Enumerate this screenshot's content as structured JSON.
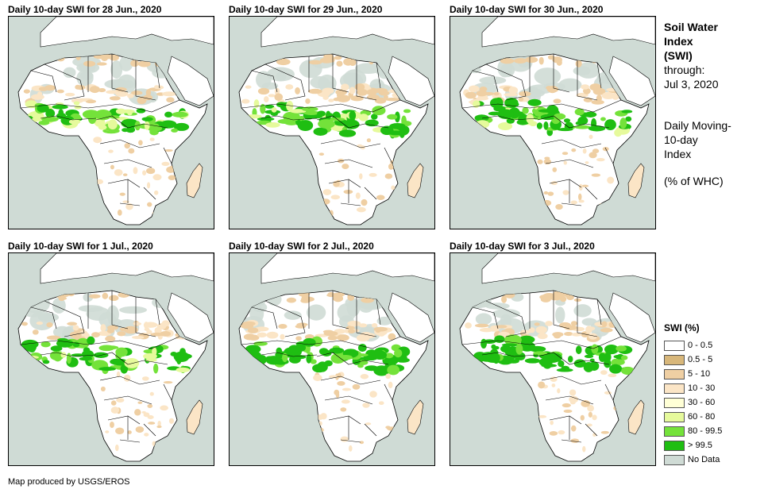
{
  "panels": [
    {
      "title": "Daily 10-day  SWI for 28 Jun., 2020"
    },
    {
      "title": "Daily 10-day  SWI for 29 Jun., 2020"
    },
    {
      "title": "Daily 10-day  SWI for 30 Jun., 2020"
    },
    {
      "title": "Daily 10-day  SWI for 1 Jul., 2020"
    },
    {
      "title": "Daily 10-day  SWI for 2 Jul., 2020"
    },
    {
      "title": "Daily 10-day  SWI for 3 Jul., 2020"
    }
  ],
  "side": {
    "title_line1": "Soil Water",
    "title_line2": "Index",
    "title_line3": "(SWI)",
    "through_label": "through:",
    "through_date": "Jul 3, 2020",
    "desc_line1": "Daily Moving-",
    "desc_line2": "10-day",
    "desc_line3": "Index",
    "units": "(% of WHC)"
  },
  "legend": {
    "title": "SWI (%)",
    "items": [
      {
        "label": "0 - 0.5",
        "color": "#ffffff"
      },
      {
        "label": "0.5 - 5",
        "color": "#d8b77a"
      },
      {
        "label": "5 - 10",
        "color": "#efcfa3"
      },
      {
        "label": "10 - 30",
        "color": "#fbe5c6"
      },
      {
        "label": "30 - 60",
        "color": "#ffffd6"
      },
      {
        "label": "60 - 80",
        "color": "#e6fa9c"
      },
      {
        "label": "80 - 99.5",
        "color": "#74e23a"
      },
      {
        "label": "> 99.5",
        "color": "#1fbe12"
      },
      {
        "label": "No Data",
        "color": "#cfdbd5"
      }
    ]
  },
  "credit": "Map produced by USGS/EROS"
}
